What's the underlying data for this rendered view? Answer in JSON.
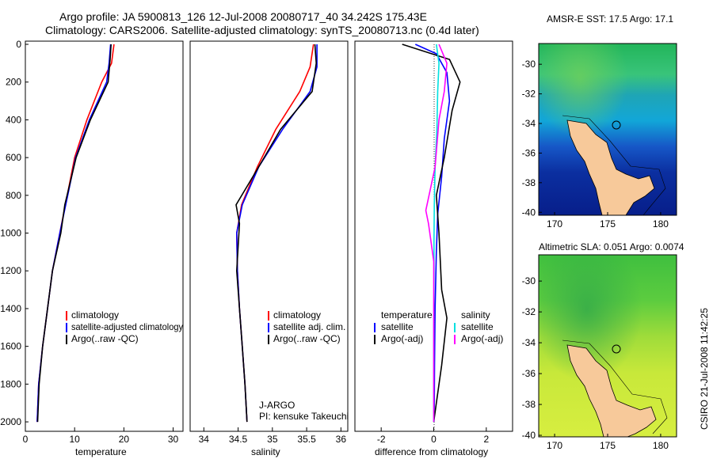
{
  "header": {
    "line1": "Argo profile: JA 5900813_126 12-Jul-2008 20080717_40 34.242S 175.43E",
    "line2": "Climatology: CARS2006. Satellite-adjusted climatology: synTS_20080713.nc (0.4d later)"
  },
  "side_text": "CSIRO 21-Jul-2008 11:42:25",
  "colors": {
    "climatology": "#ff0000",
    "satellite": "#0000ff",
    "argo": "#000000",
    "sat_sal": "#00e0e0",
    "argo_sal": "#ff00ff",
    "land": "#f7c99a"
  },
  "chart_data": [
    {
      "type": "line",
      "xlabel": "temperature",
      "xlim": [
        0,
        32
      ],
      "ylim": [
        0,
        2050
      ],
      "y_reversed": true,
      "xticks": [
        "0",
        "10",
        "20",
        "30"
      ],
      "yticks": [
        "0",
        "200",
        "400",
        "600",
        "800",
        "1000",
        "1200",
        "1400",
        "1600",
        "1800",
        "2000"
      ],
      "legend": [
        "climatology",
        "satellite-adjusted climatology",
        "Argo(..raw -QC)"
      ],
      "series": [
        {
          "key": "clim",
          "name": "climatology",
          "x": [
            18,
            17.5,
            15.5,
            12.5,
            10,
            8.5,
            7,
            5.5,
            4.5,
            3.5,
            2.7,
            2.4
          ],
          "y": [
            0,
            100,
            200,
            400,
            600,
            800,
            1000,
            1200,
            1400,
            1600,
            1800,
            2000
          ]
        },
        {
          "key": "sat",
          "name": "satellite-adjusted climatology",
          "x": [
            17.3,
            17,
            16.5,
            13,
            10.2,
            8.6,
            7,
            5.5,
            4.5,
            3.5,
            2.7,
            2.4
          ],
          "y": [
            0,
            100,
            200,
            400,
            600,
            800,
            1000,
            1200,
            1400,
            1600,
            1800,
            2000
          ]
        },
        {
          "key": "argo",
          "name": "Argo(..raw -QC)",
          "x": [
            17.4,
            17.2,
            16.8,
            13.2,
            10.3,
            8,
            7.2,
            5.5,
            4.5,
            3.5,
            2.8,
            2.5
          ],
          "y": [
            0,
            80,
            200,
            400,
            600,
            850,
            1000,
            1200,
            1400,
            1600,
            1800,
            2000
          ]
        }
      ]
    },
    {
      "type": "line",
      "xlabel": "salinity",
      "xlim": [
        33.8,
        36.1
      ],
      "ylim": [
        0,
        2050
      ],
      "y_reversed": true,
      "xticks": [
        "34",
        "34.5",
        "35",
        "35.5",
        "36"
      ],
      "legend": [
        "climatology",
        "satellite adj. clim.",
        "Argo(..raw -QC)"
      ],
      "annotation": [
        "J-ARGO",
        "PI: kensuke Takeuchi"
      ],
      "series": [
        {
          "key": "clim",
          "name": "climatology",
          "x": [
            35.6,
            35.55,
            35.4,
            35.05,
            34.78,
            34.55,
            34.48,
            34.49,
            34.52,
            34.56,
            34.6,
            34.63
          ],
          "y": [
            0,
            120,
            250,
            450,
            650,
            850,
            1000,
            1200,
            1400,
            1600,
            1800,
            2000
          ]
        },
        {
          "key": "sat",
          "name": "satellite adj. clim.",
          "x": [
            35.65,
            35.65,
            35.55,
            35.15,
            34.8,
            34.56,
            34.48,
            34.49,
            34.52,
            34.56,
            34.6,
            34.63
          ],
          "y": [
            0,
            120,
            250,
            450,
            650,
            850,
            1000,
            1200,
            1400,
            1600,
            1800,
            2000
          ]
        },
        {
          "key": "argo",
          "name": "Argo(..raw -QC)",
          "x": [
            35.62,
            35.64,
            35.58,
            35.12,
            34.8,
            34.47,
            34.52,
            34.48,
            34.52,
            34.56,
            34.6,
            34.63
          ],
          "y": [
            0,
            100,
            250,
            450,
            650,
            850,
            950,
            1200,
            1400,
            1600,
            1800,
            2000
          ]
        }
      ]
    },
    {
      "type": "line",
      "xlabel": "difference from climatology",
      "xlim": [
        -3,
        3
      ],
      "ylim": [
        0,
        2050
      ],
      "y_reversed": true,
      "xticks": [
        "-2",
        "0",
        "2"
      ],
      "legend_left": [
        "temperature",
        "satellite",
        "Argo(-adj)"
      ],
      "legend_right": [
        "salinity",
        "satellite",
        "Argo(-adj)"
      ],
      "series": [
        {
          "key": "t_sat",
          "name": "satellite",
          "x": [
            -0.7,
            0.1,
            0.5,
            0.6,
            0.4,
            0.3,
            0.15,
            0.1,
            0.05,
            0.03,
            0.02,
            0.01
          ],
          "y": [
            0,
            50,
            150,
            300,
            500,
            700,
            900,
            1100,
            1400,
            1700,
            1900,
            2000
          ]
        },
        {
          "key": "t_argo",
          "name": "Argo(-adj)",
          "x": [
            -1.2,
            0.6,
            1.0,
            0.7,
            0.4,
            0.1,
            0.2,
            0.3,
            0.5,
            0.3,
            0.1,
            0
          ],
          "y": [
            0,
            80,
            200,
            350,
            600,
            800,
            1000,
            1300,
            1450,
            1700,
            1900,
            2000
          ]
        },
        {
          "key": "s_sat",
          "name": "satellite",
          "x": [
            0.1,
            0.2,
            0.15,
            0.12,
            0.05,
            0.02,
            0.01,
            0.01,
            0,
            0,
            0,
            0
          ],
          "y": [
            0,
            100,
            250,
            450,
            650,
            850,
            1050,
            1300,
            1500,
            1700,
            1900,
            2000
          ]
        },
        {
          "key": "s_argo",
          "name": "Argo(-adj)",
          "x": [
            0.2,
            0.5,
            0.4,
            0.2,
            0.05,
            -0.3,
            -0.2,
            0,
            0,
            0,
            0,
            0
          ],
          "y": [
            0,
            100,
            250,
            400,
            650,
            880,
            950,
            1150,
            1400,
            1600,
            1800,
            2000
          ]
        }
      ]
    },
    {
      "type": "heatmap",
      "title": "AMSR-E SST: 17.5 Argo: 17.1",
      "xticks": [
        "170",
        "175",
        "180"
      ],
      "yticks": [
        "-30",
        "-32",
        "-34",
        "-36",
        "-38",
        "-40"
      ],
      "marker": {
        "lon": 175.43,
        "lat": -34.242
      }
    },
    {
      "type": "heatmap",
      "title": "Altimetric SLA: 0.051 Argo: 0.0074",
      "xticks": [
        "170",
        "175",
        "180"
      ],
      "yticks": [
        "-30",
        "-32",
        "-34",
        "-36",
        "-38",
        "-40"
      ],
      "marker": {
        "lon": 175.43,
        "lat": -34.242
      }
    }
  ]
}
